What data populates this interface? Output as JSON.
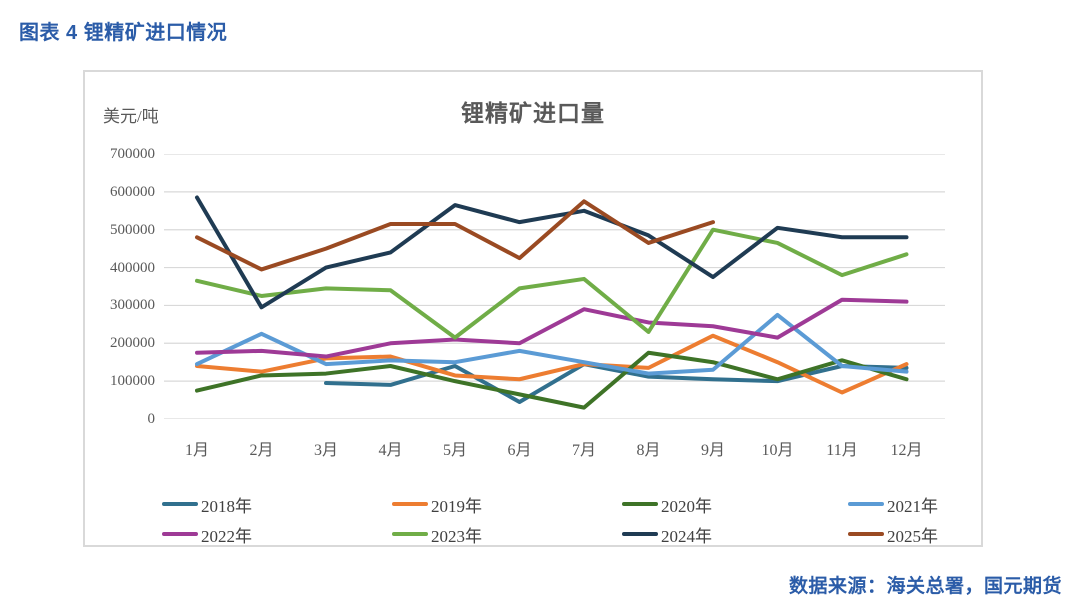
{
  "page": {
    "header": "图表 4 锂精矿进口情况",
    "source": "数据来源：海关总署，国元期货"
  },
  "chart_data": {
    "type": "line",
    "title": "锂精矿进口量",
    "y_unit_label": "美元/吨",
    "categories": [
      "1月",
      "2月",
      "3月",
      "4月",
      "5月",
      "6月",
      "7月",
      "8月",
      "9月",
      "10月",
      "11月",
      "12月"
    ],
    "ylim": [
      0,
      700000
    ],
    "y_tick_step": 100000,
    "y_tick_labels": [
      "0",
      "100000",
      "200000",
      "300000",
      "400000",
      "500000",
      "600000",
      "700000"
    ],
    "grid": true,
    "grid_color": "#D9D9D9",
    "legend_position": "bottom",
    "series": [
      {
        "name": "2018年",
        "color": "#31708E",
        "values": [
          null,
          null,
          95000,
          90000,
          140000,
          45000,
          145000,
          112000,
          105000,
          100000,
          140000,
          135000
        ]
      },
      {
        "name": "2019年",
        "color": "#ED7D31",
        "values": [
          140000,
          125000,
          160000,
          165000,
          115000,
          105000,
          145000,
          135000,
          220000,
          150000,
          70000,
          145000
        ]
      },
      {
        "name": "2020年",
        "color": "#3E7327",
        "values": [
          75000,
          115000,
          120000,
          140000,
          100000,
          65000,
          30000,
          175000,
          150000,
          105000,
          155000,
          105000
        ]
      },
      {
        "name": "2021年",
        "color": "#5B9BD5",
        "values": [
          145000,
          225000,
          145000,
          155000,
          150000,
          180000,
          150000,
          120000,
          130000,
          275000,
          140000,
          125000
        ]
      },
      {
        "name": "2022年",
        "color": "#9E3A96",
        "values": [
          175000,
          180000,
          165000,
          200000,
          210000,
          200000,
          290000,
          255000,
          245000,
          215000,
          315000,
          310000
        ]
      },
      {
        "name": "2023年",
        "color": "#70AD47",
        "values": [
          365000,
          325000,
          345000,
          340000,
          215000,
          345000,
          370000,
          230000,
          500000,
          465000,
          380000,
          435000
        ]
      },
      {
        "name": "2024年",
        "color": "#1F3B53",
        "values": [
          585000,
          295000,
          400000,
          440000,
          565000,
          520000,
          550000,
          485000,
          375000,
          505000,
          480000,
          480000
        ]
      },
      {
        "name": "2025年",
        "color": "#9A4A22",
        "values": [
          480000,
          395000,
          450000,
          515000,
          515000,
          425000,
          575000,
          465000,
          520000,
          null,
          null,
          null
        ]
      }
    ]
  }
}
